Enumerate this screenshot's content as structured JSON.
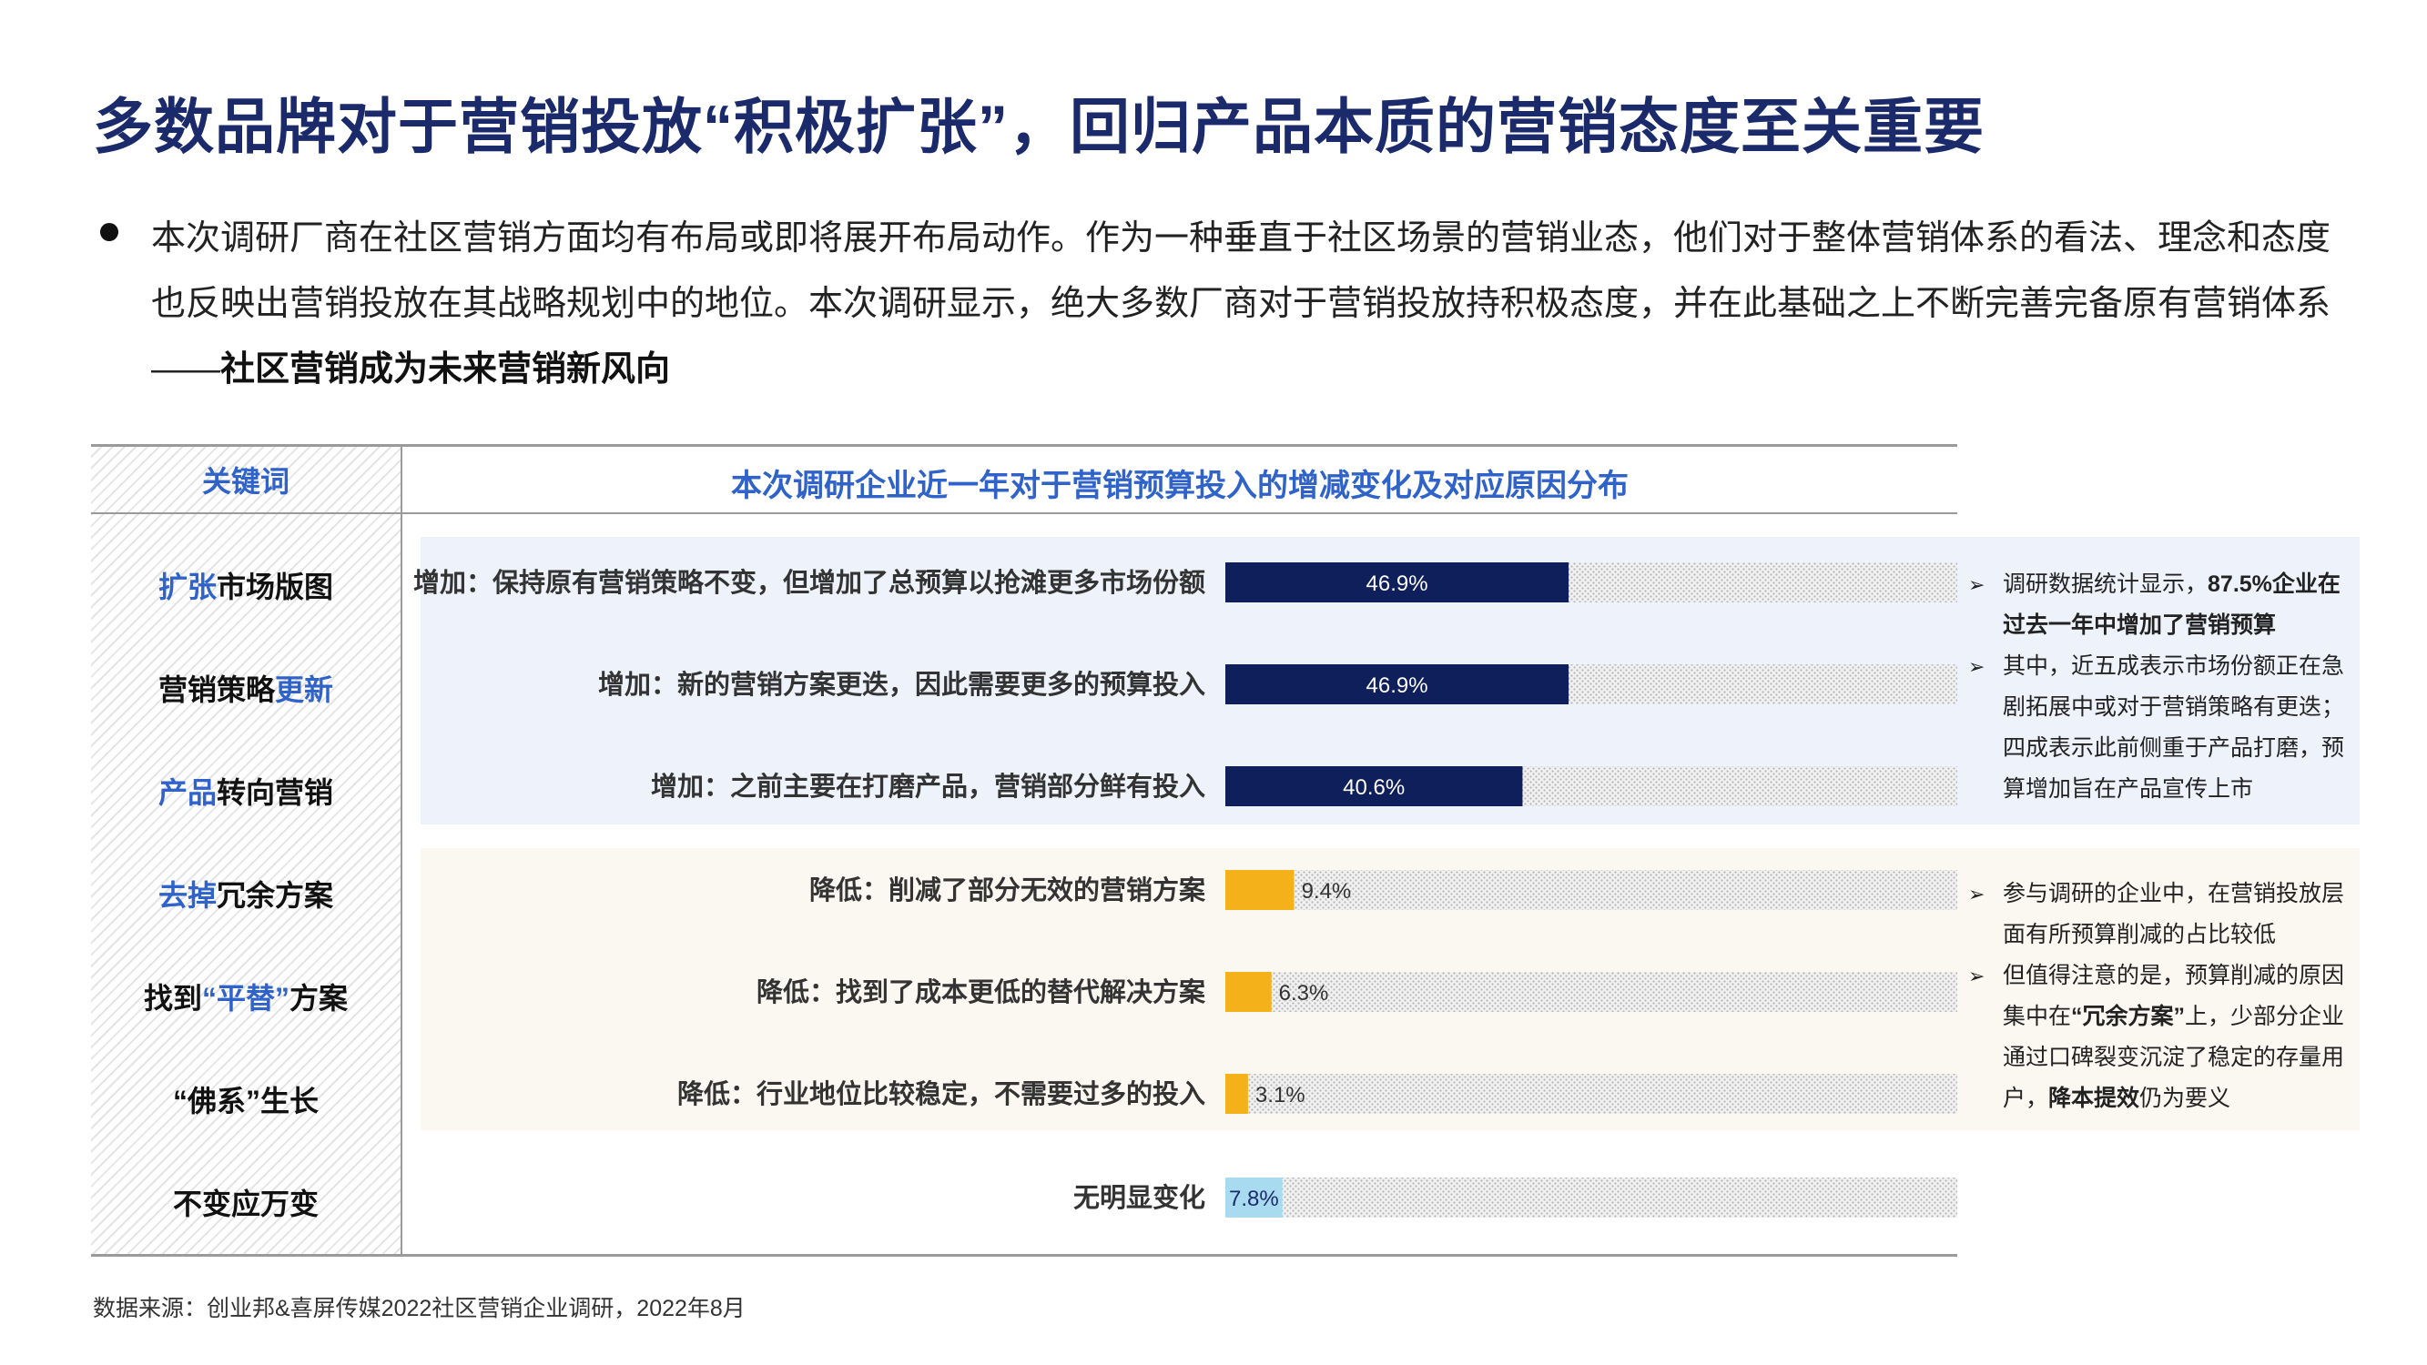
{
  "title": "多数品牌对于营销投放“积极扩张”，回归产品本质的营销态度至关重要",
  "intro": {
    "text": "本次调研厂商在社区营销方面均有布局或即将展开布局动作。作为一种垂直于社区场景的营销业态，他们对于整体营销体系的看法、理念和态度也反映出营销投放在其战略规划中的地位。本次调研显示，绝大多数厂商对于营销投放持积极态度，并在此基础之上不断完善完备原有营销体系——",
    "bold": "社区营销成为未来营销新风向"
  },
  "keywords": {
    "header": "关键词",
    "items": [
      {
        "hl": "扩张",
        "rest": "市场版图",
        "hl_first": true
      },
      {
        "hl": "更新",
        "rest": "营销策略",
        "hl_first": false
      },
      {
        "hl": "产品",
        "rest": "转向营销",
        "hl_first": true
      },
      {
        "hl": "去掉",
        "rest": "冗余方案",
        "hl_first": true
      },
      {
        "pre": "找到",
        "hl": "“平替”",
        "post": "方案"
      },
      {
        "plain": "“佛系”生长"
      },
      {
        "plain": "不变应万变"
      }
    ]
  },
  "chart_data": {
    "type": "bar",
    "orientation": "horizontal",
    "title": "本次调研企业近一年对于营销预算投入的增减变化及对应原因分布",
    "categories": [
      "增加：保持原有营销策略不变，但增加了总预算以抢滩更多市场份额",
      "增加：新的营销方案更迭，因此需要更多的预算投入",
      "增加：之前主要在打磨产品，营销部分鲜有投入",
      "降低：削减了部分无效的营销方案",
      "降低：找到了成本更低的替代解决方案",
      "降低：行业地位比较稳定，不需要过多的投入",
      "无明显变化"
    ],
    "values": [
      46.9,
      46.9,
      40.6,
      9.4,
      6.3,
      3.1,
      7.8
    ],
    "value_labels": [
      "46.9%",
      "46.9%",
      "40.6%",
      "9.4%",
      "6.3%",
      "3.1%",
      "7.8%"
    ],
    "xlim": [
      0,
      100
    ],
    "colors": [
      "#0e1f5b",
      "#0e1f5b",
      "#0e1f5b",
      "#f5b11a",
      "#f5b11a",
      "#f5b11a",
      "#a9dbf0"
    ],
    "grid": false
  },
  "notes": {
    "increase": [
      {
        "text": "调研数据统计显示，",
        "bold": "87.5%企业在过去一年中增加了营销预算",
        "tail": ""
      },
      {
        "text": "其中，近五成表示市场份额正在急剧拓展中或对于营销策略有更迭；四成表示此前侧重于产品打磨，预算增加旨在产品宣传上市",
        "bold": "",
        "tail": ""
      }
    ],
    "decrease": [
      {
        "text": "参与调研的企业中，在营销投放层面有所预算削减的占比较低",
        "bold": "",
        "tail": ""
      },
      {
        "text": "但值得注意的是，预算削减的原因集中在",
        "bold": "“冗余方案”",
        "tail": "上，少部分企业通过口碑裂变沉淀了稳定的存量用户，",
        "bold2": "降本提效",
        "tail2": "仍为要义"
      }
    ]
  },
  "source": "数据来源：创业邦&喜屏传媒2022社区营销企业调研，2022年8月"
}
